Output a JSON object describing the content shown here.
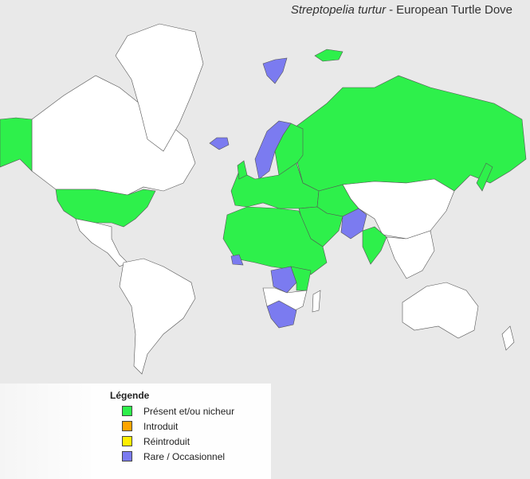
{
  "title": {
    "scientific": "Streptopelia turtur",
    "separator": "-",
    "common": "European Turtle Dove"
  },
  "legend": {
    "title": "Légende",
    "items": [
      {
        "label": "Présent et/ou nicheur",
        "color": "#2ef04b"
      },
      {
        "label": "Introduit",
        "color": "#ffa500"
      },
      {
        "label": "Réintroduit",
        "color": "#ffee00"
      },
      {
        "label": "Rare / Occasionnel",
        "color": "#7b7bf0"
      }
    ]
  }
}
